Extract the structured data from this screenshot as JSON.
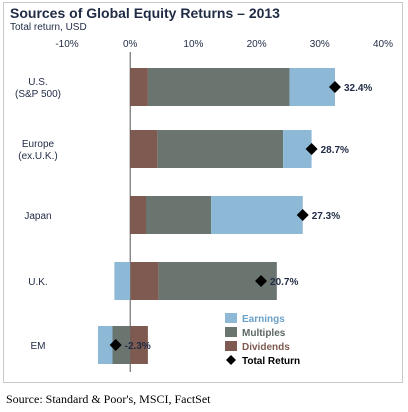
{
  "chart_data": {
    "type": "bar",
    "stacked": true,
    "orientation": "horizontal",
    "title": "Sources of Global Equity Returns – 2013",
    "subtitle": "Total return, USD",
    "x_ticks": [
      "-10%",
      "0%",
      "10%",
      "20%",
      "30%",
      "40%"
    ],
    "x_tick_values": [
      -10,
      0,
      10,
      20,
      30,
      40
    ],
    "xlim": [
      -10,
      40
    ],
    "categories": [
      [
        "U.S.",
        "(S&P 500)"
      ],
      [
        "Europe",
        "(ex.U.K.)"
      ],
      [
        "Japan"
      ],
      [
        "U.K."
      ],
      [
        "EM"
      ]
    ],
    "series": [
      {
        "name": "Dividends",
        "values": [
          2.8,
          4.3,
          2.5,
          4.5,
          2.8
        ]
      },
      {
        "name": "Multiples",
        "values": [
          22.4,
          19.9,
          10.3,
          18.7,
          -2.8
        ]
      },
      {
        "name": "Earnings",
        "values": [
          7.2,
          4.5,
          14.5,
          -2.5,
          -2.3
        ]
      }
    ],
    "total_return": {
      "name": "Total Return",
      "values": [
        32.4,
        28.7,
        27.3,
        20.7,
        -2.3
      ],
      "labels": [
        "32.4%",
        "28.7%",
        "27.3%",
        "20.7%",
        "-2.3%"
      ]
    },
    "legend": {
      "placement": "bottom-right",
      "items": [
        "Earnings",
        "Multiples",
        "Dividends",
        "Total Return"
      ]
    },
    "grid": false,
    "colors": {
      "Earnings": "#8db8d6",
      "Multiples": "#6b7570",
      "Dividends": "#7e5a50",
      "Total Return": "#000000",
      "title": "#1f2a44"
    }
  },
  "source_note": "Source: Standard & Poor's, MSCI, FactSet"
}
